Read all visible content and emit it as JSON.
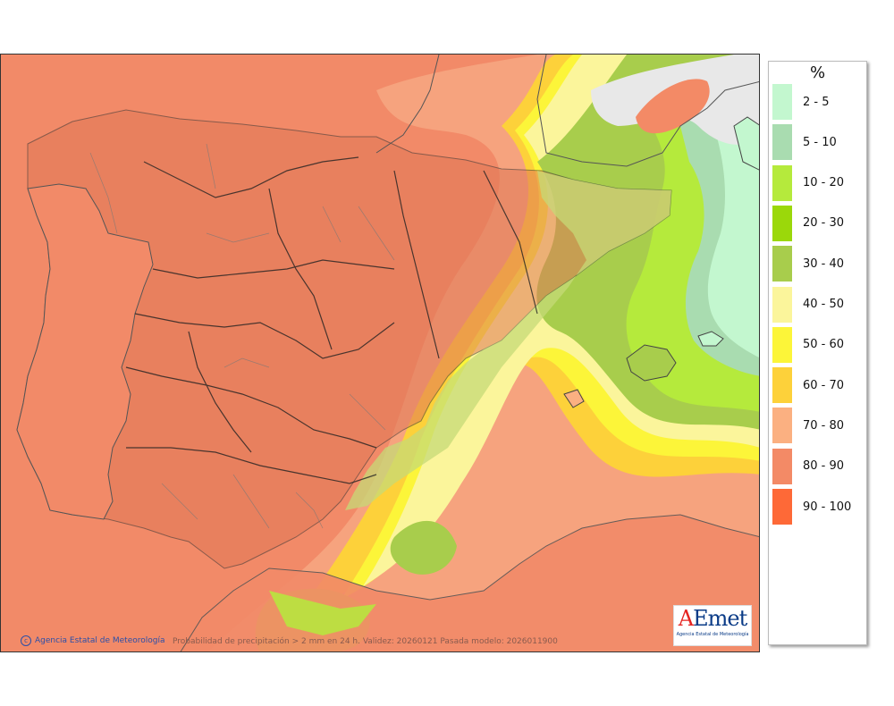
{
  "map": {
    "credit": "Agencia Estatal de Meteorología",
    "caption": "Probabilidad de precipitación > 2 mm en 24 h. Validez: 20260121 Pasada modelo: 2026011900",
    "logo": {
      "wordmark_prefix": "A",
      "wordmark_rest": "Emet",
      "subtitle": "Agencia Estatal de Meteorología"
    }
  },
  "legend": {
    "title": "%",
    "classes": [
      {
        "label": "2 - 5",
        "color": "#c3f7cf"
      },
      {
        "label": "5 - 10",
        "color": "#a9dcb0"
      },
      {
        "label": "10 - 20",
        "color": "#b5ea3c"
      },
      {
        "label": "20 - 30",
        "color": "#9bd80a"
      },
      {
        "label": "30 - 40",
        "color": "#a8cd4c"
      },
      {
        "label": "40 - 50",
        "color": "#fbf59b"
      },
      {
        "label": "50 - 60",
        "color": "#fcf539"
      },
      {
        "label": "60 - 70",
        "color": "#fdd13a"
      },
      {
        "label": "70 - 80",
        "color": "#fbb081"
      },
      {
        "label": "80 - 90",
        "color": "#f38a66"
      },
      {
        "label": "90 - 100",
        "color": "#fe6937"
      }
    ]
  }
}
